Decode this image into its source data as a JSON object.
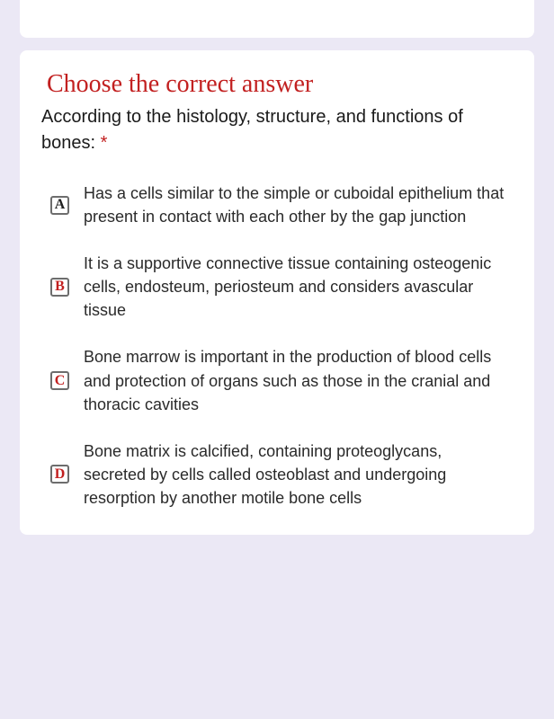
{
  "heading": "Choose the correct answer",
  "subheading_prefix": "According to the histology, structure, and functions of bones: ",
  "asterisk": "*",
  "options": [
    {
      "letter": "A",
      "text": "Has a cells similar to the simple or cuboidal epithelium that present in contact with each other by the gap junction"
    },
    {
      "letter": "B",
      "text": "It is a supportive connective tissue containing osteogenic cells, endosteum, periosteum and considers avascular tissue"
    },
    {
      "letter": "C",
      "text": "Bone marrow is important in the production of blood cells and protection of organs such as those in the cranial and thoracic cavities"
    },
    {
      "letter": "D",
      "text": "Bone matrix is calcified, containing proteoglycans, secreted by cells called osteoblast and undergoing resorption by another motile bone cells"
    }
  ],
  "colors": {
    "page_bg": "#ebe8f5",
    "card_bg": "#ffffff",
    "heading": "#c22020",
    "text": "#2a2a2a",
    "radio_border": "#6d6d6d"
  }
}
